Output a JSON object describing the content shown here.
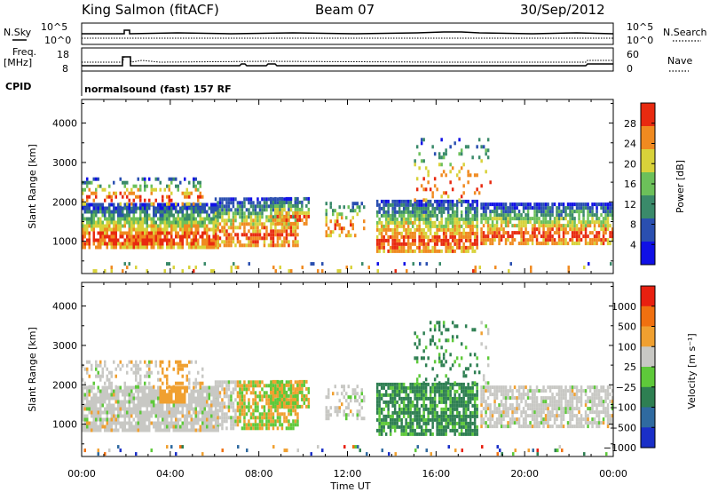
{
  "header": {
    "station": "King Salmon (fitACF)",
    "beam": "Beam 07",
    "date": "30/Sep/2012"
  },
  "top_panels": {
    "nsky_label": "N.Sky",
    "nsearch_label": "N.Search",
    "noise_hi": "10^5",
    "noise_lo": "10^0",
    "freq_label_1": "Freq.",
    "freq_label_2": "[MHz]",
    "freq_hi": "18",
    "freq_lo": "8",
    "nave_label": "Nave",
    "nave_hi": "60",
    "nave_lo": "0",
    "cpid_label": "CPID",
    "cpid_value": "normalsound (fast) 157 RF"
  },
  "chart_data": [
    {
      "type": "heatmap",
      "title": "",
      "ylabel": "Slant Range [km]",
      "xlabel": "",
      "ylim": [
        180,
        4600
      ],
      "yticks": [
        "1000",
        "2000",
        "3000",
        "4000"
      ],
      "xticks": [
        "00:00",
        "04:00",
        "08:00",
        "12:00",
        "16:00",
        "20:00",
        "00:00"
      ],
      "colorbar": {
        "label": "Power [dB]",
        "ticks": [
          "4",
          "8",
          "12",
          "16",
          "20",
          "24",
          "28"
        ],
        "colors": [
          "#1010e6",
          "#2a4fb0",
          "#3a8a6a",
          "#6cc05a",
          "#d8d23a",
          "#f08a20",
          "#e82a10"
        ]
      }
    },
    {
      "type": "heatmap",
      "title": "",
      "ylabel": "Slant Range [km]",
      "xlabel": "Time UT",
      "ylim": [
        180,
        4600
      ],
      "yticks": [
        "1000",
        "2000",
        "3000",
        "4000"
      ],
      "xticks": [
        "00:00",
        "04:00",
        "08:00",
        "12:00",
        "16:00",
        "20:00",
        "00:00"
      ],
      "colorbar": {
        "label": "Velocity [m s⁻¹]",
        "ticks": [
          "1000",
          "500",
          "100",
          "25",
          "−25",
          "−100",
          "−500",
          "−1000"
        ],
        "colors": [
          "#1a2fc8",
          "#2f6aa0",
          "#2e7f52",
          "#5ec93a",
          "#c8c8c4",
          "#f0a030",
          "#f07010",
          "#e82010"
        ]
      }
    }
  ]
}
